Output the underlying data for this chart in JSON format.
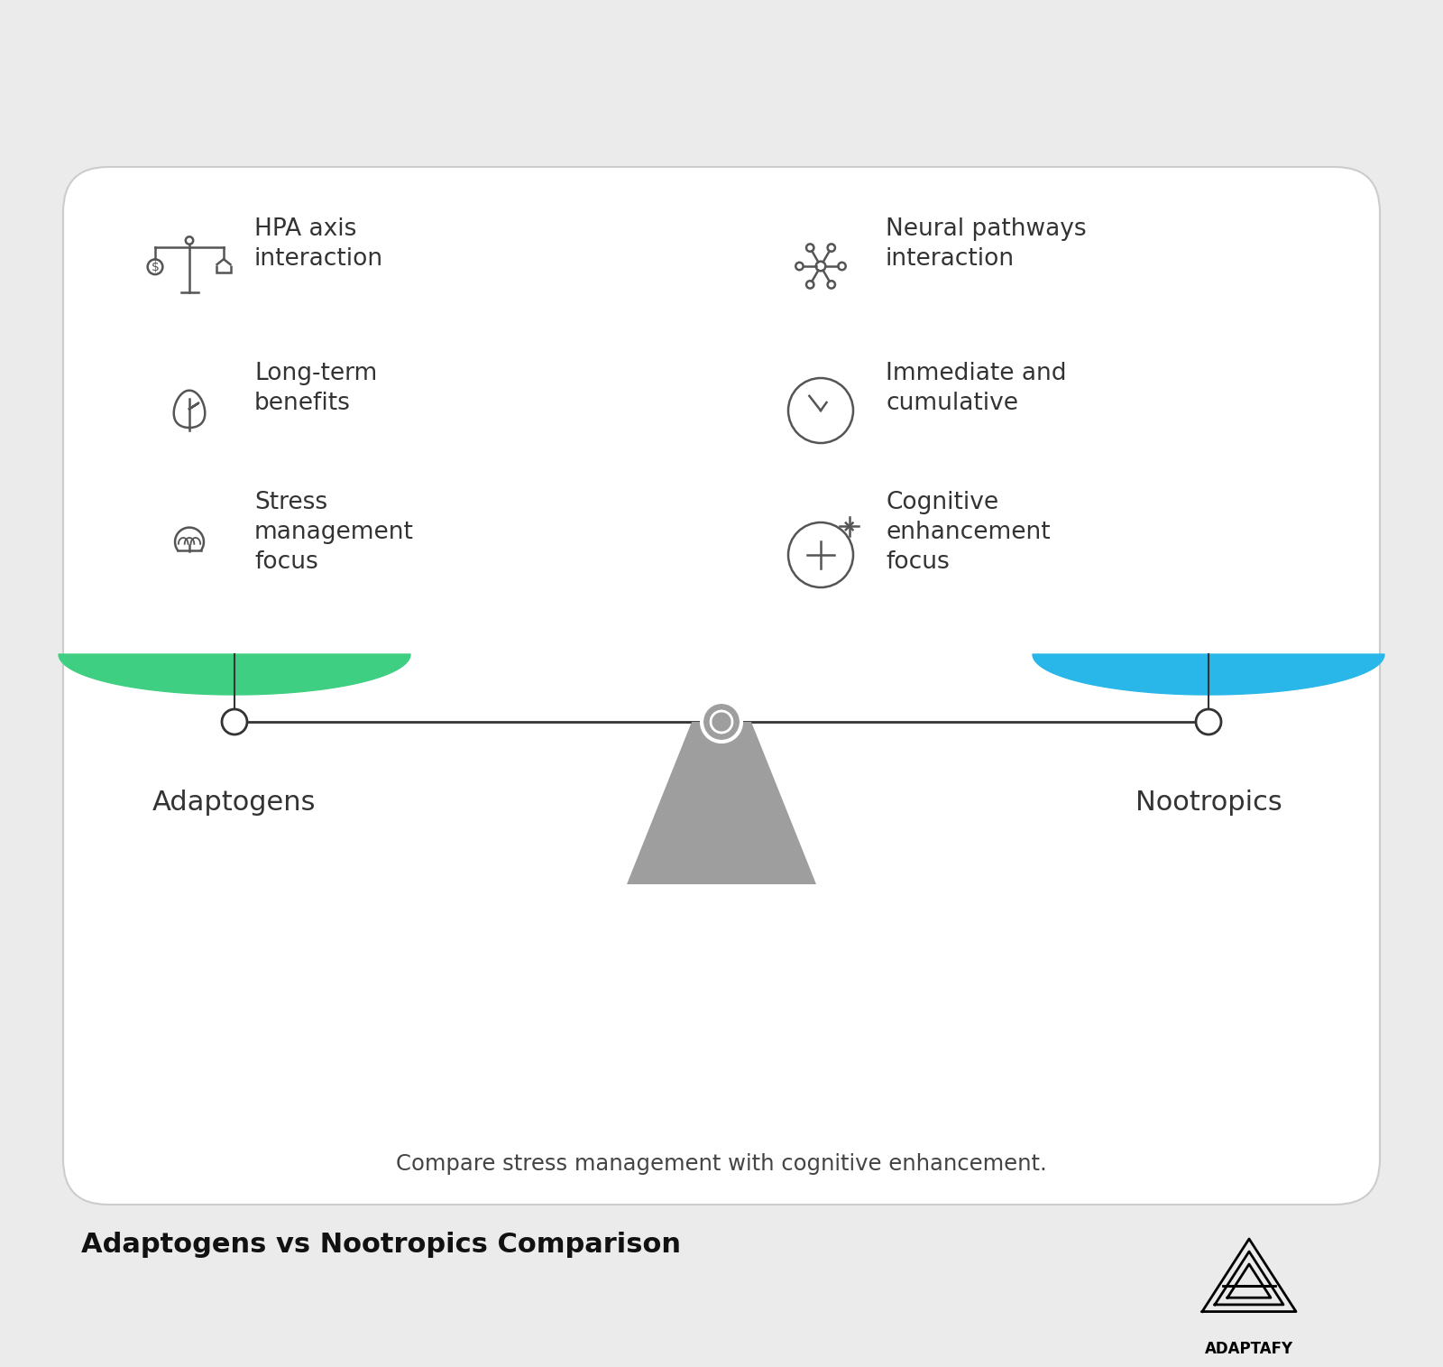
{
  "bg_color": "#ebebeb",
  "card_bg": "#ffffff",
  "title": "Adaptogens vs Nootropics Comparison",
  "subtitle": "Compare stress management with cognitive enhancement.",
  "left_label": "Adaptogens",
  "right_label": "Nootropics",
  "left_items": [
    "HPA axis\ninteraction",
    "Long-term\nbenefits",
    "Stress\nmanagement\nfocus"
  ],
  "right_items": [
    "Neural pathways\ninteraction",
    "Immediate and\ncumulative",
    "Cognitive\nenhancement\nfocus"
  ],
  "left_bowl_color": "#3ecf82",
  "right_bowl_color": "#29b6e8",
  "beam_color": "#333333",
  "fulcrum_color": "#9e9e9e",
  "icon_color": "#555555",
  "text_color": "#333333",
  "title_color": "#111111",
  "subtitle_color": "#444444"
}
